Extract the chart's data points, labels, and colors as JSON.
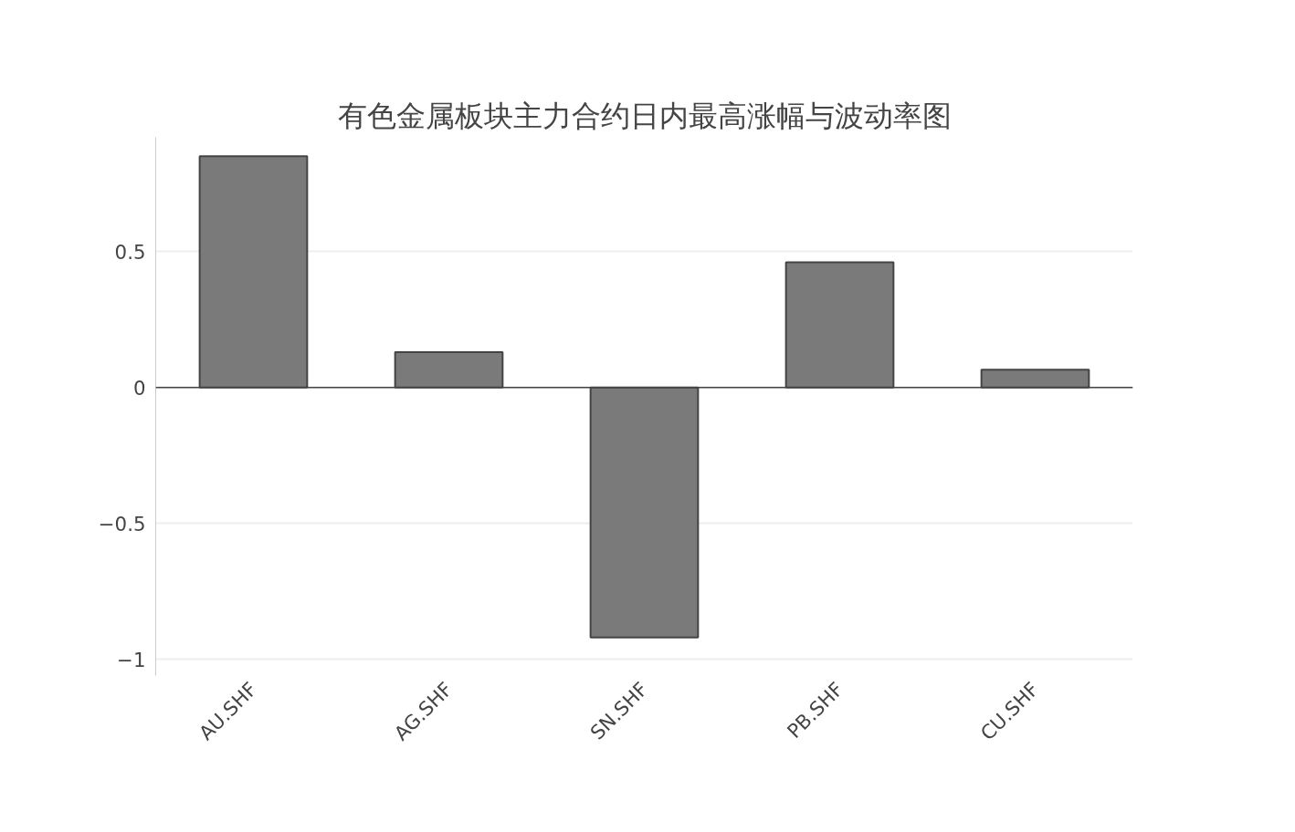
{
  "chart_data": {
    "type": "bar",
    "title": "有色金属板块主力合约日内最高涨幅与波动率图",
    "categories": [
      "AU.SHF",
      "AG.SHF",
      "SN.SHF",
      "PB.SHF",
      "CU.SHF"
    ],
    "values": [
      0.85,
      0.13,
      -0.92,
      0.46,
      0.065
    ],
    "color": "#7a7a7a",
    "ylim": [
      -1.06,
      0.92
    ],
    "yticks": [
      {
        "value": -1,
        "label": "−1"
      },
      {
        "value": -0.5,
        "label": "−0.5"
      },
      0,
      0.5
    ],
    "grid": "y"
  }
}
